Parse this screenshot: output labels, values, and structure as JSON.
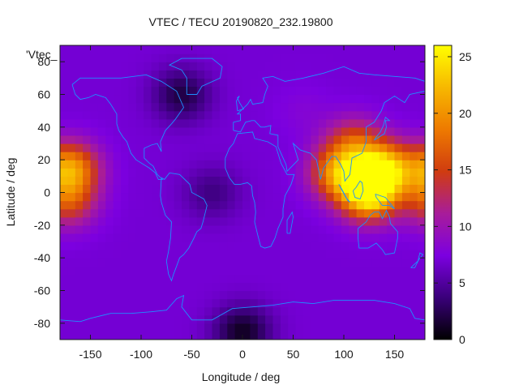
{
  "chart_data": {
    "type": "heatmap",
    "title": "VTEC / TECU 20190820_232.19800",
    "xlabel": "Longitude / deg",
    "ylabel": "Latitude / deg",
    "key_label": "'Vtec_",
    "xlim": [
      -180,
      180
    ],
    "ylim": [
      -90,
      90
    ],
    "x_ticks": [
      -150,
      -100,
      -50,
      0,
      50,
      100,
      150
    ],
    "x_tick_labels": [
      "-150",
      "-100",
      "-50",
      "0",
      "50",
      "100",
      "150"
    ],
    "y_ticks": [
      -80,
      -60,
      -40,
      -20,
      0,
      20,
      40,
      60,
      80
    ],
    "y_tick_labels": [
      "-80",
      "-60",
      "-40",
      "-20",
      "0",
      "20",
      "40",
      "60",
      "80"
    ],
    "colorbar": {
      "range": [
        0,
        26
      ],
      "ticks": [
        0,
        5,
        10,
        15,
        20,
        25
      ],
      "tick_labels": [
        "0",
        "5",
        "10",
        "15",
        "20",
        "25"
      ],
      "colormap": [
        "#000000",
        "#3a007a",
        "#7c00e0",
        "#a81c9a",
        "#d03c10",
        "#ee7a00",
        "#f7b800",
        "#ffff00"
      ]
    },
    "vtec_features": [
      {
        "lon": 125,
        "lat": 0,
        "value": 26
      },
      {
        "lon": 140,
        "lat": 15,
        "value": 22
      },
      {
        "lon": 95,
        "lat": 12,
        "value": 19
      },
      {
        "lon": 110,
        "lat": 30,
        "value": 15
      },
      {
        "lon": -170,
        "lat": 15,
        "value": 20
      },
      {
        "lon": -172,
        "lat": -5,
        "value": 15
      },
      {
        "lon": -60,
        "lat": 60,
        "value": 2
      },
      {
        "lon": -30,
        "lat": 0,
        "value": 4
      },
      {
        "lon": 0,
        "lat": -85,
        "value": 1
      },
      {
        "lon": 0,
        "lat": -30,
        "value": 7
      },
      {
        "lon": 60,
        "lat": 50,
        "value": 8
      }
    ],
    "vtec_background": 7,
    "grid": false,
    "legend": "colorbar-right"
  },
  "colors": {
    "coastline": "#1e90ff",
    "axis": "#1a1a1a"
  }
}
